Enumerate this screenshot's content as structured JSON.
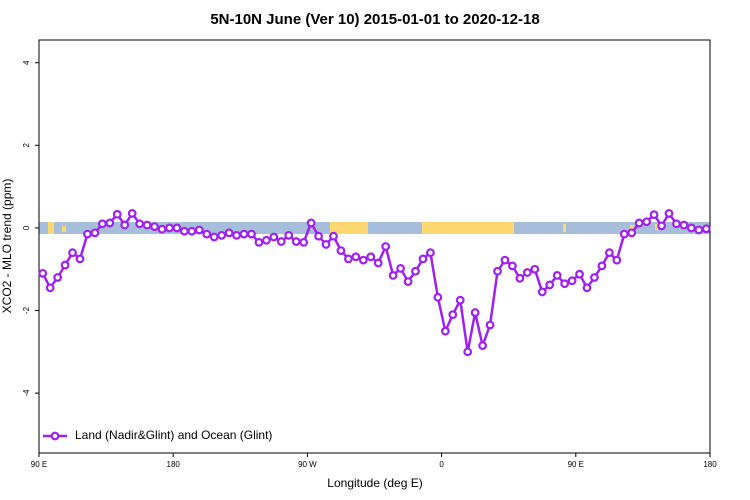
{
  "chart_data": {
    "type": "line",
    "title": "5N-10N June (Ver 10)   2015-01-01 to 2020-12-18",
    "x_label": "Longitude (deg E)",
    "y_label": "XCO2 - MLO trend (ppm)",
    "legend_position": "bottom-left",
    "xlim": [
      90,
      540
    ],
    "ylim": [
      -5.45,
      4.55
    ],
    "xticks": [
      {
        "value": 90,
        "label": "90 E"
      },
      180,
      {
        "value": 270,
        "label": "90 W"
      },
      {
        "value": 360,
        "label": "0"
      },
      {
        "value": 450,
        "label": "90 E"
      },
      {
        "value": 540,
        "label": "180"
      }
    ],
    "yticks": [
      -4,
      -2,
      0,
      2,
      4
    ],
    "x": [
      92.5,
      97.5,
      102.5,
      107.5,
      112.5,
      117.5,
      122.5,
      127.5,
      132.5,
      137.5,
      142.5,
      147.5,
      152.5,
      157.5,
      162.5,
      167.5,
      172.5,
      177.5,
      182.5,
      187.5,
      192.5,
      197.5,
      202.5,
      207.5,
      212.5,
      217.5,
      222.5,
      227.5,
      232.5,
      237.5,
      242.5,
      247.5,
      252.5,
      257.5,
      262.5,
      267.5,
      272.5,
      277.5,
      282.5,
      287.5,
      292.5,
      297.5,
      302.5,
      307.5,
      312.5,
      317.5,
      322.5,
      327.5,
      332.5,
      337.5,
      342.5,
      347.5,
      352.5,
      357.5,
      362.5,
      367.5,
      372.5,
      377.5,
      382.5,
      387.5,
      392.5,
      397.5,
      402.5,
      407.5,
      412.5,
      417.5,
      422.5,
      427.5,
      432.5,
      437.5,
      442.5,
      447.5,
      452.5,
      457.5,
      462.5,
      467.5,
      472.5,
      477.5,
      482.5,
      487.5,
      492.5,
      497.5,
      502.5,
      507.5,
      512.5,
      517.5,
      522.5,
      527.5,
      532.5,
      537.5
    ],
    "series": [
      {
        "name": "Land (Nadir&Glint) and Ocean (Glint)",
        "color": "#a020f0",
        "values": [
          -1.1,
          -1.45,
          -1.2,
          -0.9,
          -0.6,
          -0.75,
          -0.15,
          -0.12,
          0.1,
          0.12,
          0.33,
          0.07,
          0.35,
          0.1,
          0.07,
          0.03,
          -0.03,
          0.0,
          0.0,
          -0.08,
          -0.08,
          -0.05,
          -0.15,
          -0.22,
          -0.18,
          -0.12,
          -0.18,
          -0.15,
          -0.15,
          -0.35,
          -0.3,
          -0.22,
          -0.33,
          -0.18,
          -0.33,
          -0.35,
          0.12,
          -0.2,
          -0.4,
          -0.2,
          -0.55,
          -0.75,
          -0.7,
          -0.78,
          -0.7,
          -0.85,
          -0.45,
          -1.15,
          -0.98,
          -1.3,
          -1.05,
          -0.75,
          -0.6,
          -1.68,
          -2.5,
          -2.1,
          -1.75,
          -3.0,
          -2.05,
          -2.85,
          -2.35,
          -1.05,
          -0.78,
          -0.92,
          -1.22,
          -1.08,
          -1.0,
          -1.55,
          -1.38,
          -1.15,
          -1.35,
          -1.28,
          -1.12,
          -1.45,
          -1.2,
          -0.92,
          -0.6,
          -0.78,
          -0.15,
          -0.12,
          0.12,
          0.15,
          0.32,
          0.05,
          0.35,
          0.1,
          0.07,
          0.0,
          -0.05,
          -0.02
        ]
      }
    ]
  }
}
